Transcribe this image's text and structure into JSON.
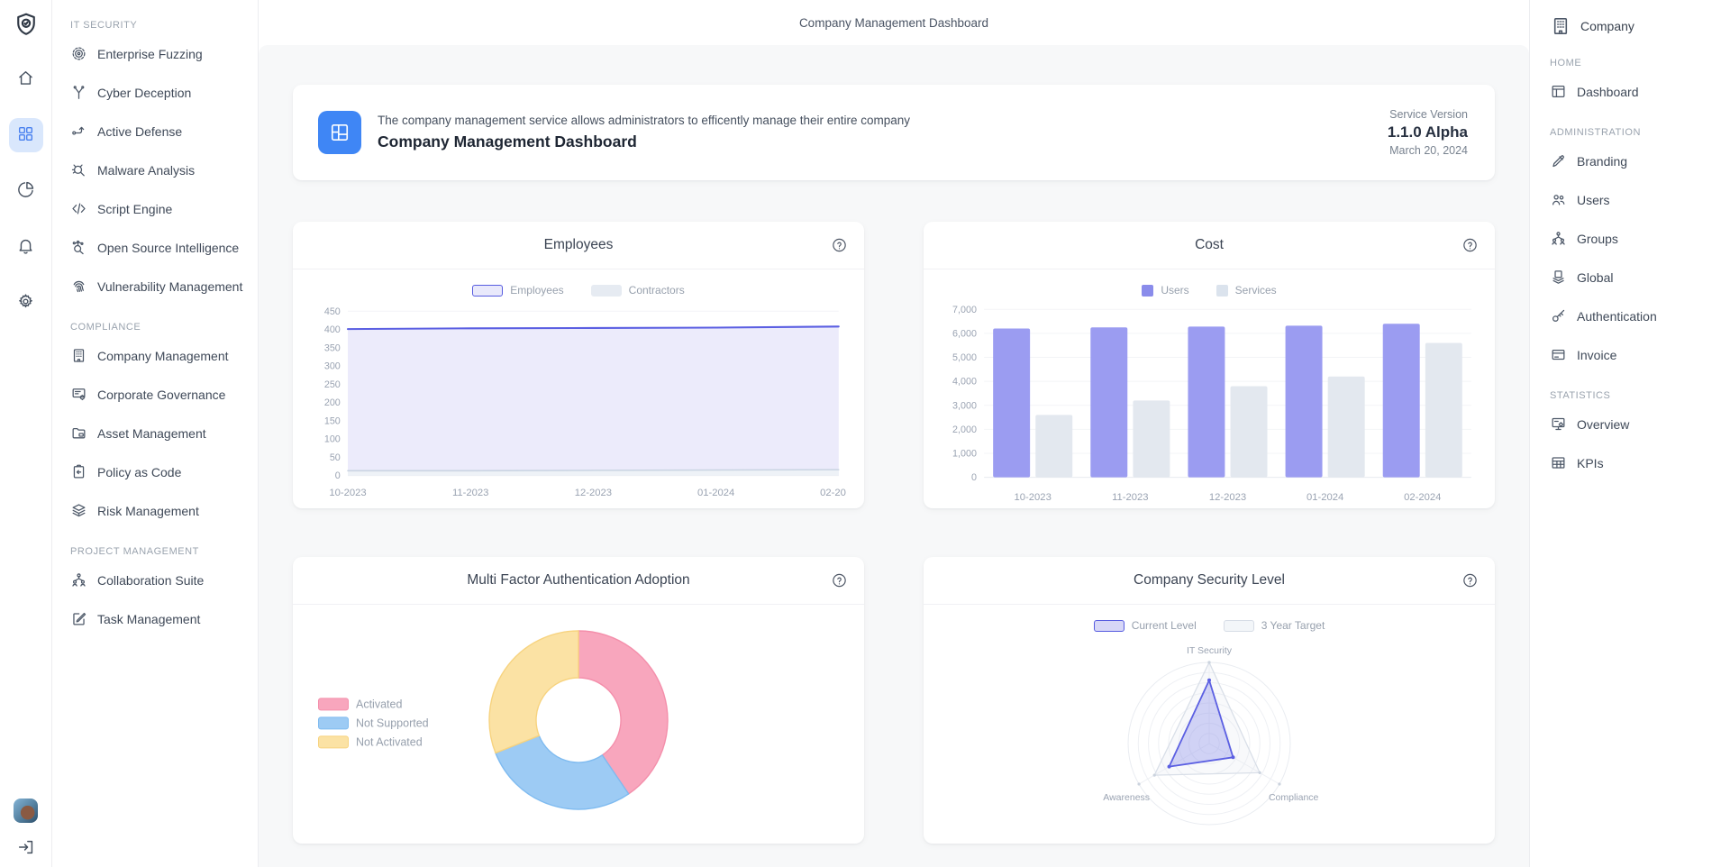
{
  "app": {
    "title": "Company Management Dashboard",
    "company_label": "Company"
  },
  "icon_rail": {
    "logo_icon": "shield-check",
    "items": [
      {
        "icon": "home",
        "name": "home",
        "active": false
      },
      {
        "icon": "grid",
        "name": "dashboard",
        "active": true
      },
      {
        "icon": "pie",
        "name": "analytics",
        "active": false
      },
      {
        "icon": "bell",
        "name": "notifications",
        "active": false
      },
      {
        "icon": "gear",
        "name": "settings",
        "active": false
      }
    ]
  },
  "left_sidebar": {
    "sections": [
      {
        "label": "IT SECURITY",
        "items": [
          {
            "icon": "target",
            "label": "Enterprise Fuzzing"
          },
          {
            "icon": "branch",
            "label": "Cyber Deception"
          },
          {
            "icon": "share",
            "label": "Active Defense"
          },
          {
            "icon": "bug-search",
            "label": "Malware Analysis"
          },
          {
            "icon": "code",
            "label": "Script Engine"
          },
          {
            "icon": "search-network",
            "label": "Open Source Intelligence"
          },
          {
            "icon": "fingerprint",
            "label": "Vulnerability Management"
          }
        ]
      },
      {
        "label": "COMPLIANCE",
        "items": [
          {
            "icon": "building",
            "label": "Company Management"
          },
          {
            "icon": "list-gear",
            "label": "Corporate Governance"
          },
          {
            "icon": "folder",
            "label": "Asset Management"
          },
          {
            "icon": "clipboard",
            "label": "Policy as Code"
          },
          {
            "icon": "layers",
            "label": "Risk Management"
          }
        ]
      },
      {
        "label": "PROJECT MANAGEMENT",
        "items": [
          {
            "icon": "org",
            "label": "Collaboration Suite"
          },
          {
            "icon": "task",
            "label": "Task Management"
          }
        ]
      }
    ]
  },
  "banner": {
    "description": "The company management service allows administrators to efficently manage their entire company",
    "title": "Company Management Dashboard",
    "version_label": "Service Version",
    "version": "1.1.0 Alpha",
    "date": "March 20, 2024"
  },
  "right_sidebar": {
    "header": {
      "icon": "building",
      "label": "Company"
    },
    "sections": [
      {
        "label": "HOME",
        "items": [
          {
            "icon": "window",
            "label": "Dashboard"
          }
        ]
      },
      {
        "label": "ADMINISTRATION",
        "items": [
          {
            "icon": "pencil",
            "label": "Branding"
          },
          {
            "icon": "users",
            "label": "Users"
          },
          {
            "icon": "org",
            "label": "Groups"
          },
          {
            "icon": "stack",
            "label": "Global"
          },
          {
            "icon": "key",
            "label": "Authentication"
          },
          {
            "icon": "card",
            "label": "Invoice"
          }
        ]
      },
      {
        "label": "STATISTICS",
        "items": [
          {
            "icon": "monitor-gear",
            "label": "Overview"
          },
          {
            "icon": "table",
            "label": "KPIs"
          }
        ]
      }
    ]
  },
  "chart_data": [
    {
      "type": "area",
      "title": "Employees",
      "categories": [
        "10-2023",
        "11-2023",
        "12-2023",
        "01-2024",
        "02-2024"
      ],
      "ylim": [
        0,
        450
      ],
      "ytick": 50,
      "grid": true,
      "legend_position": "top",
      "series": [
        {
          "name": "Employees",
          "values": [
            401,
            403,
            404,
            405,
            408
          ],
          "color": "#5b5fe2",
          "fill": "#ecebfb",
          "swatch": {
            "fill": "#e9e9fb",
            "border": "#575ce0"
          }
        },
        {
          "name": "Contractors",
          "values": [
            13,
            13,
            14,
            15,
            16
          ],
          "color": "#c9d4e2",
          "fill": "#eef2f7",
          "swatch": {
            "fill": "#e6ebf2",
            "border": "#e6ebf2"
          }
        }
      ]
    },
    {
      "type": "bar",
      "title": "Cost",
      "categories": [
        "10-2023",
        "11-2023",
        "12-2023",
        "01-2024",
        "02-2024"
      ],
      "ylim": [
        0,
        7000
      ],
      "ytick": 1000,
      "grid": true,
      "legend_position": "top",
      "series": [
        {
          "name": "Users",
          "values": [
            6200,
            6250,
            6280,
            6320,
            6400
          ],
          "color": "#9b9cf1",
          "swatch": {
            "fill": "#8a8ceb",
            "border": "#8a8ceb"
          }
        },
        {
          "name": "Services",
          "values": [
            2600,
            3200,
            3800,
            4200,
            5600
          ],
          "color": "#e3e8ef",
          "swatch": {
            "fill": "#dbe3ed",
            "border": "#dbe3ed"
          }
        }
      ]
    },
    {
      "type": "donut",
      "title": "Multi Factor Authentication Adoption",
      "legend_position": "left",
      "slices": [
        {
          "label": "Activated",
          "value": 40.5,
          "color": "#f8a6bd",
          "border": "#f48fab"
        },
        {
          "label": "Not Supported",
          "value": 28.5,
          "color": "#9dcbf4",
          "border": "#7fbbf0"
        },
        {
          "label": "Not Activated",
          "value": 31,
          "color": "#fbe2a4",
          "border": "#f7d37f"
        }
      ]
    },
    {
      "type": "radar",
      "title": "Company Security Level",
      "axes": [
        "IT Security",
        "Compliance",
        "Awareness"
      ],
      "max": 100,
      "rings": 8,
      "legend_position": "top",
      "series": [
        {
          "name": "Current Level",
          "values": [
            78,
            34,
            57
          ],
          "color": "#5b5fe2",
          "fill": "rgba(116,119,232,0.30)",
          "swatch": {
            "fill": "#d7d7f7",
            "border": "#575ce0"
          }
        },
        {
          "name": "3 Year Target",
          "values": [
            100,
            72,
            78
          ],
          "color": "#d9dfe8",
          "fill": "rgba(228,233,240,0.25)",
          "swatch": {
            "fill": "#f3f6f9",
            "border": "#d7dde6"
          }
        }
      ]
    }
  ]
}
